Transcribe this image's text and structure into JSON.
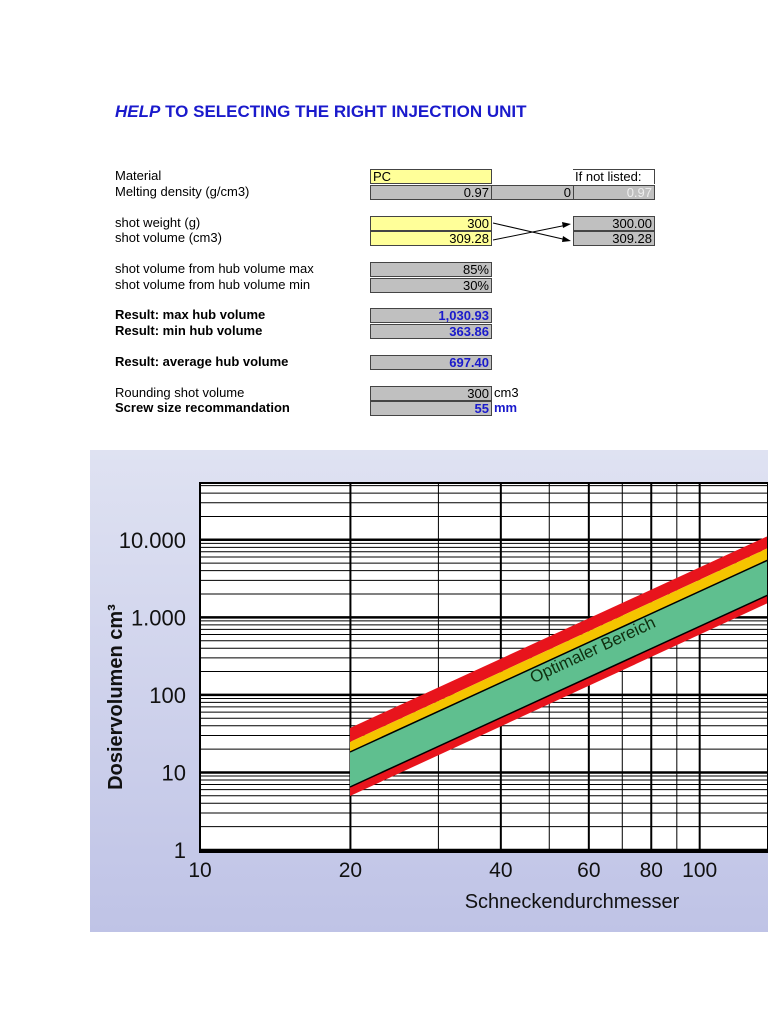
{
  "header": {
    "title_em": "HELP",
    "title": "TO SELECTING THE RIGHT INJECTION UNIT"
  },
  "rows": [
    {
      "label": "Material",
      "value": "PC",
      "value3": "If not listed:"
    },
    {
      "label": "Melting density (g/cm3)",
      "value": "0.97",
      "value2": "0",
      "value3": "0.97"
    },
    {
      "label": "shot weight (g)",
      "value": "300",
      "value3": "300.00"
    },
    {
      "label": "shot volume (cm3)",
      "value": "309.28",
      "value3": "309.28"
    },
    {
      "label": "shot volume from hub volume max",
      "value": "85%"
    },
    {
      "label": "shot volume from hub volume min",
      "value": "30%"
    },
    {
      "label": "Result: max hub volume",
      "value": "1,030.93"
    },
    {
      "label": "Result: min hub volume",
      "value": "363.86"
    },
    {
      "label": "Result: average hub volume",
      "value": "697.40"
    },
    {
      "label": "Rounding shot volume",
      "value": "300",
      "unit": "cm3"
    },
    {
      "label": "Screw size recommandation",
      "value": "55",
      "unit": "mm"
    }
  ],
  "chart": {
    "ylabel": "Dosiervolumen cm³",
    "xlabel": "Schneckendurchmesser",
    "annotation": "Optimaler Bereich",
    "xscale": "log",
    "yscale": "log",
    "xlim": [
      10,
      137
    ],
    "ylim": [
      1,
      54000
    ],
    "xticks": [
      10,
      20,
      40,
      60,
      80,
      100
    ],
    "yticks": [
      {
        "value": 10000,
        "label": "10.000"
      },
      {
        "value": 1000,
        "label": "1.000"
      },
      100,
      10,
      1
    ]
  }
}
